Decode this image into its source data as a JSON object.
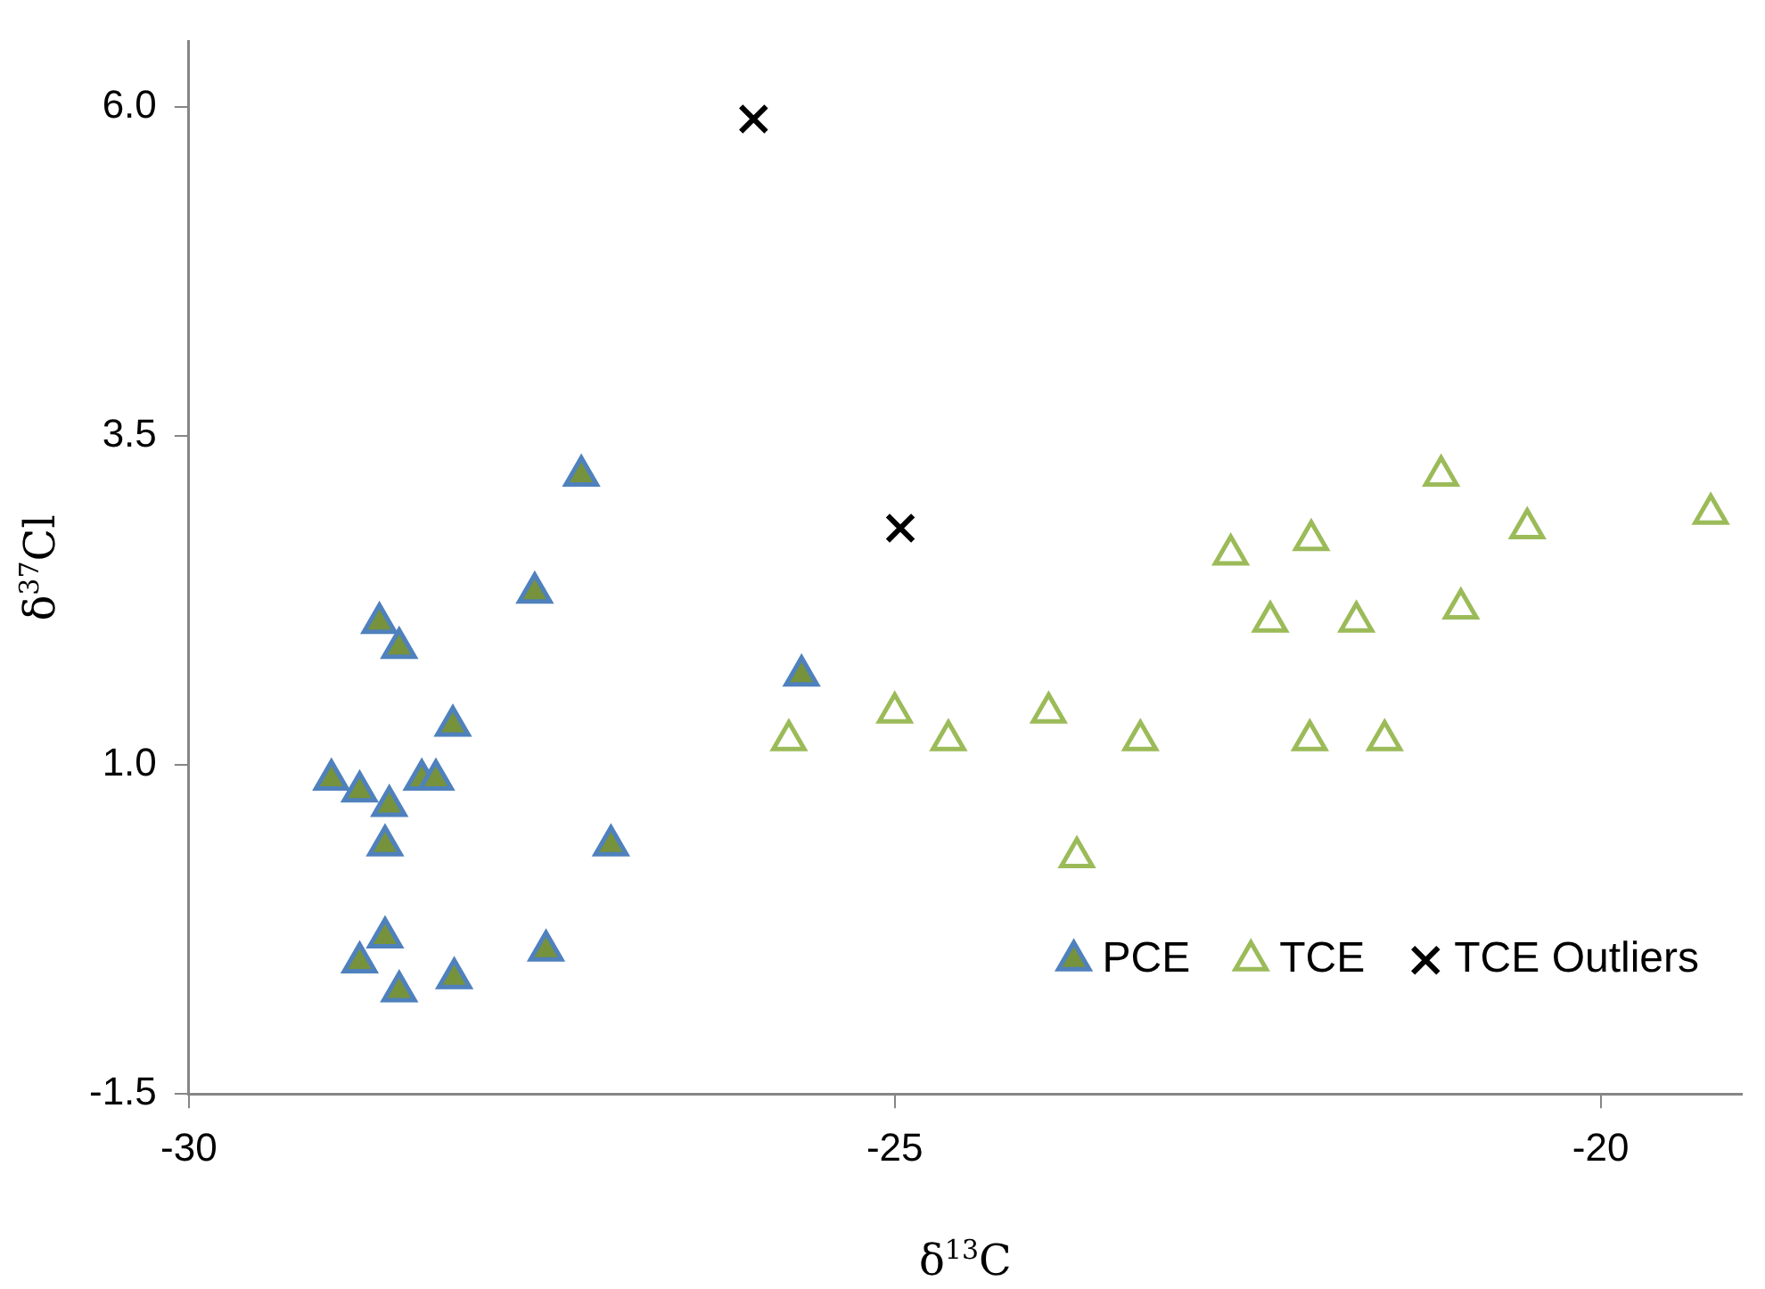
{
  "chart_data": {
    "type": "scatter",
    "xlabel": "δ$^{13}$C",
    "ylabel": "δ$^{37}$Cl",
    "xlim": [
      -30,
      -19
    ],
    "ylim": [
      -1.5,
      6.5
    ],
    "xticks": [
      -30,
      -25,
      -20
    ],
    "yticks": [
      -1.5,
      {
        "value": 1,
        "label": "1.0"
      },
      3.5,
      {
        "value": 6,
        "label": "6.0"
      }
    ],
    "grid": false,
    "legend": "bottom right",
    "series": [
      {
        "name": "PCE",
        "color": "#76923c",
        "marker": "triangle",
        "x": [
          -28.99,
          -28.79,
          -28.58,
          -28.61,
          -28.65,
          -28.51,
          -28.35,
          -28.25,
          -28.13,
          -27.22,
          -27.55,
          -27.01,
          -25.66,
          -28.61,
          -28.79,
          -28.51,
          -28.12,
          -27.47
        ],
        "values": [
          0.89,
          0.8,
          0.69,
          0.39,
          2.08,
          1.89,
          0.89,
          0.89,
          1.3,
          3.2,
          2.31,
          0.39,
          1.68,
          -0.31,
          -0.5,
          -0.72,
          -0.62,
          -0.41
        ]
      },
      {
        "name": "TCE",
        "color": "#9bbb59",
        "marker": "triangle",
        "x": [
          -25.75,
          -25.0,
          -24.62,
          -23.91,
          -23.71,
          -23.26,
          -22.62,
          -22.34,
          -22.06,
          -22.05,
          -21.73,
          -21.53,
          -21.13,
          -20.99,
          -20.52,
          -19.22
        ],
        "values": [
          1.19,
          1.4,
          1.19,
          1.4,
          0.3,
          1.19,
          2.6,
          2.09,
          1.19,
          2.71,
          2.09,
          1.19,
          3.2,
          2.19,
          2.8,
          2.91
        ]
      },
      {
        "name": "TCE Outliers",
        "color": "#000000",
        "marker": "cross",
        "x": [
          -26.0,
          -24.96
        ],
        "values": [
          5.91,
          2.8
        ]
      }
    ]
  }
}
